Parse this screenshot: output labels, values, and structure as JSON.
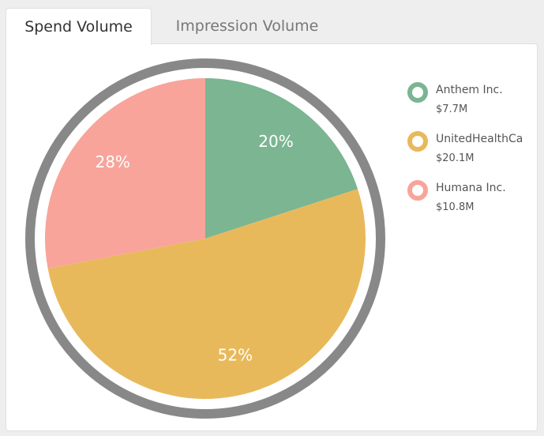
{
  "tabs": [
    {
      "label": "Spend Volume",
      "active": true
    },
    {
      "label": "Impression Volume",
      "active": false
    }
  ],
  "chart_data": {
    "type": "pie",
    "title": "",
    "slices": [
      {
        "label": "Anthem Inc.",
        "value": 20,
        "value_label": "20%",
        "amount": "$7.7M",
        "color": "#7bb592"
      },
      {
        "label": "UnitedHealthCa",
        "value": 52,
        "value_label": "52%",
        "amount": "$20.1M",
        "color": "#e8b95b"
      },
      {
        "label": "Humana Inc.",
        "value": 28,
        "value_label": "28%",
        "amount": "$10.8M",
        "color": "#f8a49a"
      }
    ],
    "legend_position": "right",
    "ring_color": "#888888"
  }
}
